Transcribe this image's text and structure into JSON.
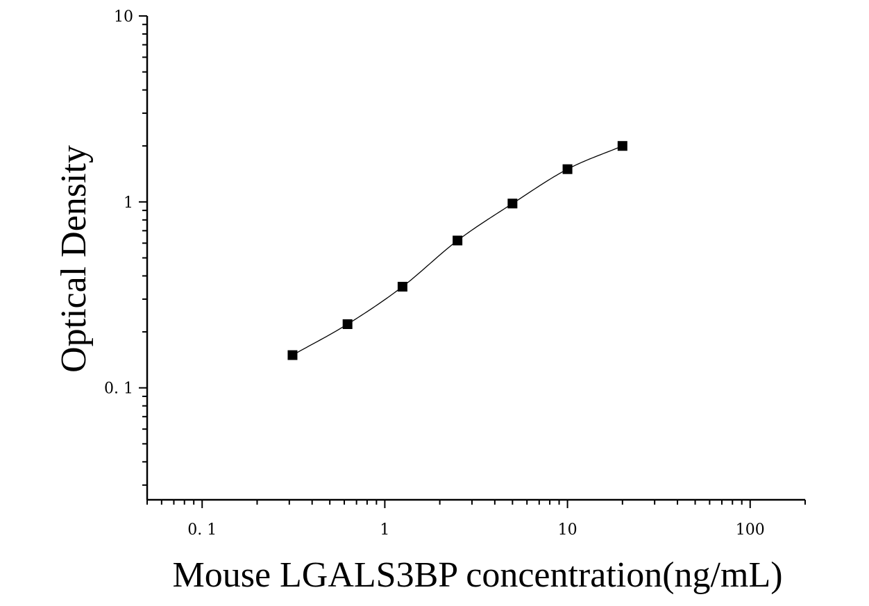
{
  "chart_data": {
    "type": "scatter",
    "title": "",
    "xlabel": "Mouse LGALS3BP concentration(ng/mL)",
    "ylabel": "Optical Density",
    "x_scale": "log",
    "y_scale": "log",
    "xlim": [
      0.05,
      200
    ],
    "ylim": [
      0.025,
      10
    ],
    "x_ticks": [
      0.1,
      1,
      10,
      100
    ],
    "x_tick_labels": [
      "0. 1",
      "1",
      "10",
      "100"
    ],
    "y_ticks": [
      0.1,
      1,
      10
    ],
    "y_tick_labels": [
      "0. 1",
      "1",
      "10"
    ],
    "grid": false,
    "legend": "none",
    "series": [
      {
        "x": [
          0.3125,
          0.625,
          1.25,
          2.5,
          5,
          10,
          20
        ],
        "y": [
          0.15,
          0.22,
          0.35,
          0.62,
          0.98,
          1.5,
          2.0
        ],
        "marker": "square",
        "color": "#000000",
        "fit_curve": true
      }
    ]
  }
}
